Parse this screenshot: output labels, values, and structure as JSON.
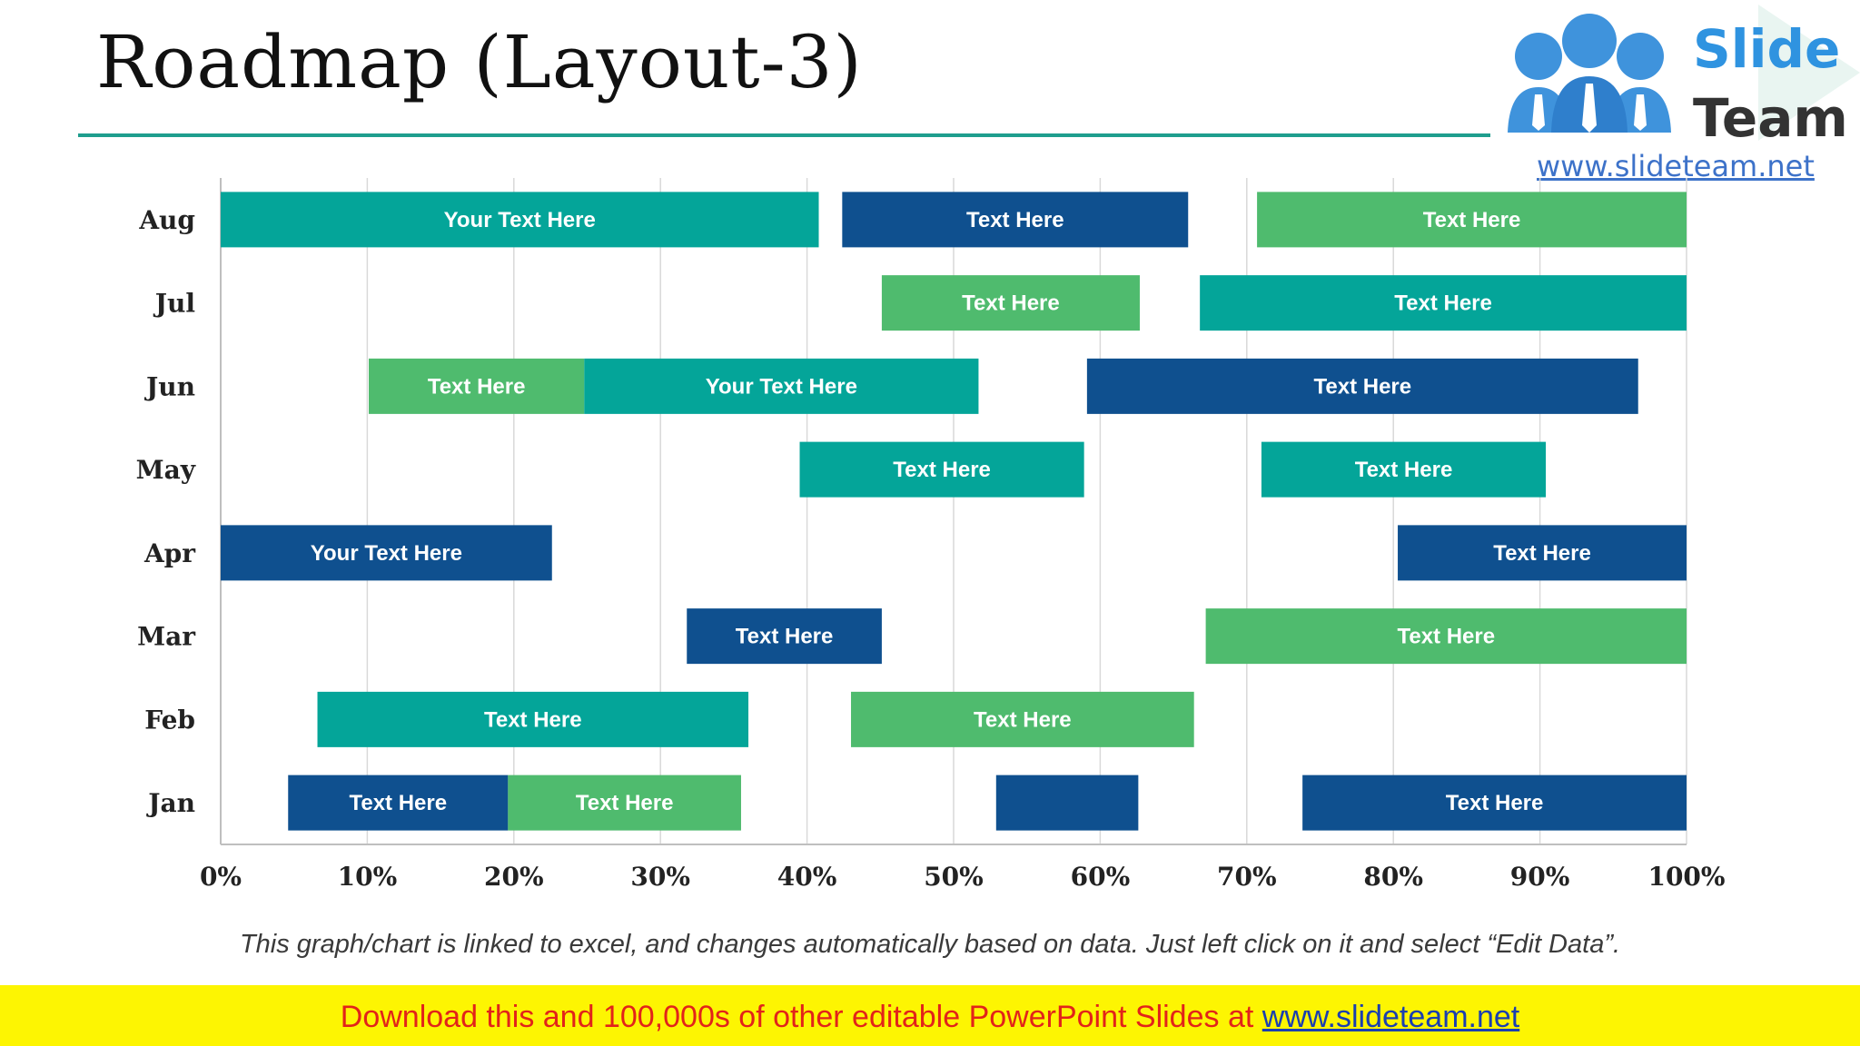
{
  "slide": {
    "title": "Roadmap (Layout-3)",
    "caption": "This graph/chart is linked to excel, and changes automatically based on data. Just left click on it and select “Edit Data”.",
    "footer_text": "Download this and 100,000s of other editable PowerPoint Slides at ",
    "footer_link": "www.slideteam.net"
  },
  "logo": {
    "line1": "Slide",
    "line2": "Team",
    "url": "www.slideteam.net",
    "icon": "people-group-icon"
  },
  "colors": {
    "teal": "#04a599",
    "navy": "#0f508f",
    "green": "#4fbb6e",
    "accent_rule": "#1f9e8e",
    "footer_bg": "#fdf502",
    "footer_text": "#e2231a"
  },
  "chart_data": {
    "type": "bar",
    "orientation": "horizontal",
    "stacked": true,
    "categories": [
      "Jan",
      "Feb",
      "Mar",
      "Apr",
      "May",
      "Jun",
      "Jul",
      "Aug"
    ],
    "xlim": [
      0,
      100
    ],
    "xticks": [
      "0%",
      "10%",
      "20%",
      "30%",
      "40%",
      "50%",
      "60%",
      "70%",
      "80%",
      "90%",
      "100%"
    ],
    "grid": true,
    "bars": {
      "Jan": [
        {
          "start": 4.6,
          "end": 19.6,
          "color": "navy",
          "label": "Text Here"
        },
        {
          "start": 19.6,
          "end": 35.5,
          "color": "green",
          "label": "Text Here"
        },
        {
          "start": 52.9,
          "end": 62.6,
          "color": "navy",
          "label": ""
        },
        {
          "start": 73.8,
          "end": 100,
          "color": "navy",
          "label": "Text Here"
        }
      ],
      "Feb": [
        {
          "start": 6.6,
          "end": 36.0,
          "color": "teal",
          "label": "Text Here"
        },
        {
          "start": 43.0,
          "end": 66.4,
          "color": "green",
          "label": "Text Here"
        }
      ],
      "Mar": [
        {
          "start": 31.8,
          "end": 45.1,
          "color": "navy",
          "label": "Text Here"
        },
        {
          "start": 67.2,
          "end": 100,
          "color": "green",
          "label": "Text Here"
        }
      ],
      "Apr": [
        {
          "start": 0,
          "end": 22.6,
          "color": "navy",
          "label": "Your Text Here"
        },
        {
          "start": 80.3,
          "end": 100,
          "color": "navy",
          "label": "Text Here"
        }
      ],
      "May": [
        {
          "start": 39.5,
          "end": 58.9,
          "color": "teal",
          "label": "Text Here"
        },
        {
          "start": 71.0,
          "end": 90.4,
          "color": "teal",
          "label": "Text Here"
        }
      ],
      "Jun": [
        {
          "start": 10.1,
          "end": 24.8,
          "color": "green",
          "label": "Text Here"
        },
        {
          "start": 24.8,
          "end": 51.7,
          "color": "teal",
          "label": "Your Text Here"
        },
        {
          "start": 59.1,
          "end": 96.7,
          "color": "navy",
          "label": "Text Here"
        }
      ],
      "Jul": [
        {
          "start": 45.1,
          "end": 62.7,
          "color": "green",
          "label": "Text Here"
        },
        {
          "start": 66.8,
          "end": 100,
          "color": "teal",
          "label": "Text Here"
        }
      ],
      "Aug": [
        {
          "start": 0,
          "end": 40.8,
          "color": "teal",
          "label": "Your Text Here"
        },
        {
          "start": 42.4,
          "end": 66.0,
          "color": "navy",
          "label": "Text Here"
        },
        {
          "start": 70.7,
          "end": 100,
          "color": "green",
          "label": "Text Here"
        }
      ]
    }
  }
}
